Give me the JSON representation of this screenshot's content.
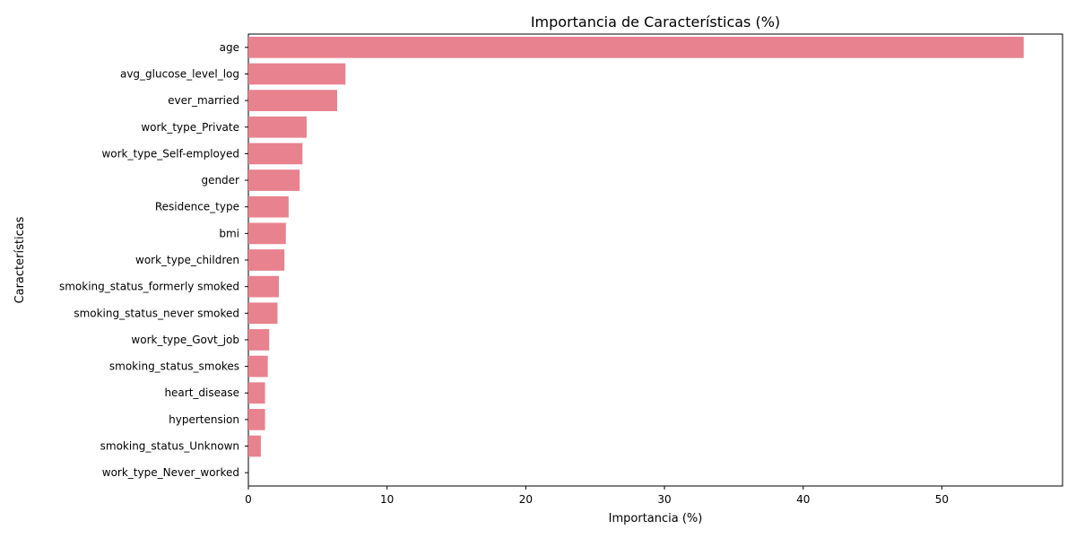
{
  "chart_data": {
    "type": "bar",
    "orientation": "horizontal",
    "title": "Importancia de Características (%)",
    "xlabel": "Importancia (%)",
    "ylabel": "Características",
    "xlim": [
      0,
      58.7
    ],
    "xticks": [
      0,
      10,
      20,
      30,
      40,
      50
    ],
    "grid": false,
    "bar_color": "#e8828f",
    "categories": [
      "age",
      "avg_glucose_level_log",
      "ever_married",
      "work_type_Private",
      "work_type_Self-employed",
      "gender",
      "Residence_type",
      "bmi",
      "work_type_children",
      "smoking_status_formerly smoked",
      "smoking_status_never smoked",
      "work_type_Govt_job",
      "smoking_status_smokes",
      "heart_disease",
      "hypertension",
      "smoking_status_Unknown",
      "work_type_Never_worked"
    ],
    "values": [
      55.9,
      7.0,
      6.4,
      4.2,
      3.9,
      3.7,
      2.9,
      2.7,
      2.6,
      2.2,
      2.1,
      1.5,
      1.4,
      1.2,
      1.2,
      0.9,
      0.0
    ]
  }
}
